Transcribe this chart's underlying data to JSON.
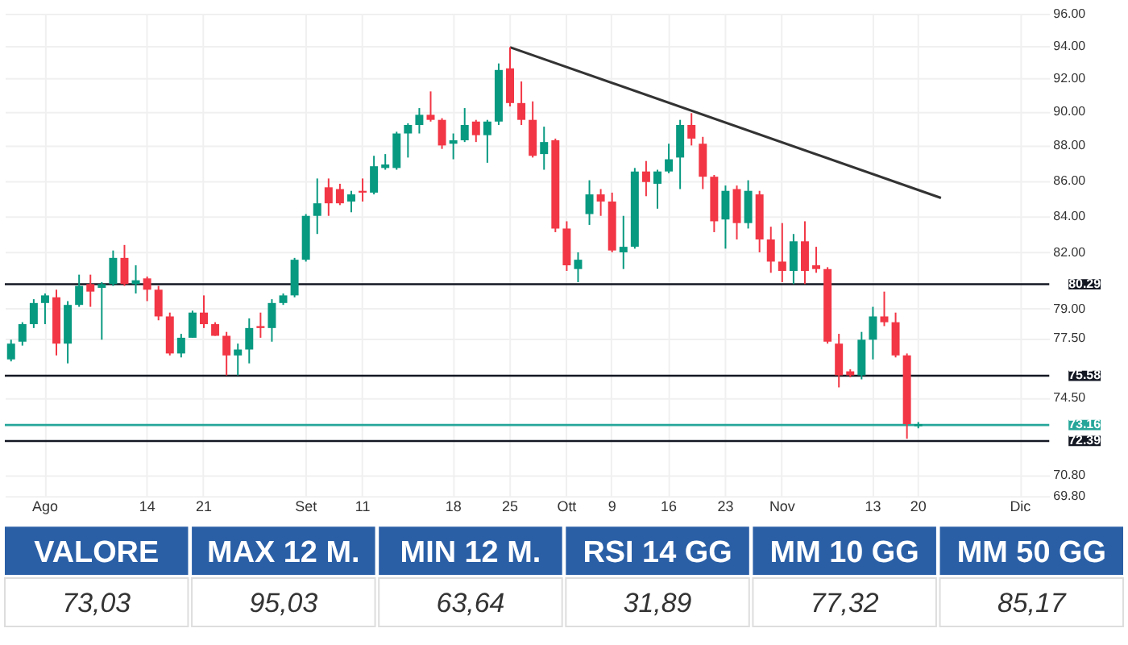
{
  "chart_data": [
    {
      "type": "candlestick",
      "categories": [
        null,
        null,
        null,
        "Ago",
        null,
        null,
        null,
        null,
        null,
        null,
        null,
        null,
        "14",
        null,
        null,
        null,
        null,
        "21",
        null,
        null,
        null,
        null,
        null,
        null,
        null,
        null,
        "Set",
        null,
        null,
        null,
        null,
        "11",
        null,
        null,
        null,
        null,
        null,
        null,
        null,
        "18",
        null,
        null,
        null,
        null,
        "25",
        null,
        null,
        null,
        null,
        "Ott",
        null,
        null,
        null,
        "9",
        null,
        null,
        null,
        null,
        "16",
        null,
        null,
        null,
        null,
        "23",
        null,
        null,
        null,
        null,
        "Nov",
        null,
        null,
        null,
        null,
        null,
        null,
        null,
        "13",
        null,
        null,
        null,
        "20",
        null,
        null,
        null,
        null,
        null,
        null,
        null,
        null,
        "Dic",
        null,
        null
      ],
      "ohlc": [
        [
          76.4,
          77.4,
          76.3,
          77.2
        ],
        [
          77.3,
          78.3,
          77.1,
          78.2
        ],
        [
          78.2,
          79.5,
          78.0,
          79.3
        ],
        [
          79.3,
          79.8,
          78.2,
          79.7
        ],
        [
          79.6,
          80.0,
          76.6,
          77.2
        ],
        [
          77.2,
          79.4,
          76.2,
          79.2
        ],
        [
          79.2,
          80.8,
          79.1,
          80.2
        ],
        [
          80.3,
          80.8,
          79.1,
          79.9
        ],
        [
          80.1,
          80.4,
          77.4,
          80.3
        ],
        [
          80.3,
          82.1,
          80.2,
          81.7
        ],
        [
          81.7,
          82.4,
          80.2,
          80.3
        ],
        [
          80.3,
          81.3,
          79.8,
          80.5
        ],
        [
          80.6,
          80.7,
          79.4,
          80.0
        ],
        [
          80.0,
          80.2,
          78.4,
          78.6
        ],
        [
          78.6,
          78.8,
          76.6,
          76.7
        ],
        [
          76.7,
          77.7,
          76.5,
          77.5
        ],
        [
          77.5,
          78.9,
          77.5,
          78.8
        ],
        [
          78.8,
          79.7,
          78.0,
          78.2
        ],
        [
          78.2,
          78.3,
          77.6,
          77.6
        ],
        [
          77.6,
          77.8,
          75.6,
          76.6
        ],
        [
          76.6,
          77.2,
          75.6,
          76.9
        ],
        [
          76.9,
          78.5,
          76.2,
          78.0
        ],
        [
          78.1,
          78.8,
          77.5,
          78.0
        ],
        [
          78.0,
          79.5,
          77.3,
          79.3
        ],
        [
          79.3,
          79.8,
          79.2,
          79.7
        ],
        [
          79.7,
          81.7,
          79.6,
          81.6
        ],
        [
          81.6,
          84.1,
          81.5,
          84.0
        ],
        [
          84.0,
          86.1,
          83.0,
          84.7
        ],
        [
          85.6,
          86.1,
          84.0,
          84.7
        ],
        [
          85.5,
          85.8,
          84.6,
          84.7
        ],
        [
          84.8,
          85.4,
          84.2,
          85.2
        ],
        [
          85.4,
          86.1,
          84.8,
          85.3
        ],
        [
          85.3,
          87.4,
          85.2,
          86.8
        ],
        [
          86.7,
          87.5,
          86.6,
          86.9
        ],
        [
          86.7,
          88.8,
          86.6,
          88.7
        ],
        [
          88.7,
          89.3,
          87.3,
          89.2
        ],
        [
          89.2,
          90.2,
          88.7,
          89.8
        ],
        [
          89.8,
          91.2,
          89.4,
          89.5
        ],
        [
          89.5,
          89.6,
          87.8,
          88.0
        ],
        [
          88.1,
          88.7,
          87.2,
          88.3
        ],
        [
          88.3,
          90.2,
          88.2,
          89.2
        ],
        [
          89.4,
          89.5,
          88.2,
          88.6
        ],
        [
          88.6,
          89.5,
          87.0,
          89.4
        ],
        [
          89.4,
          92.9,
          89.2,
          92.5
        ],
        [
          92.6,
          93.9,
          90.3,
          90.5
        ],
        [
          90.5,
          91.8,
          89.2,
          89.5
        ],
        [
          89.5,
          90.6,
          87.3,
          87.4
        ],
        [
          87.5,
          89.1,
          86.6,
          88.2
        ],
        [
          88.3,
          88.4,
          83.1,
          83.3
        ],
        [
          83.3,
          83.7,
          81.0,
          81.3
        ],
        [
          81.1,
          82.0,
          80.4,
          81.6
        ],
        [
          84.1,
          86.0,
          83.5,
          85.2
        ],
        [
          85.2,
          85.5,
          84.0,
          84.8
        ],
        [
          84.8,
          85.3,
          82.0,
          82.1
        ],
        [
          82.0,
          84.0,
          81.1,
          82.3
        ],
        [
          82.3,
          86.7,
          82.2,
          86.5
        ],
        [
          86.5,
          87.1,
          85.1,
          85.9
        ],
        [
          85.8,
          86.6,
          84.4,
          86.5
        ],
        [
          86.5,
          88.1,
          86.4,
          87.2
        ],
        [
          87.3,
          89.5,
          85.5,
          89.2
        ],
        [
          89.2,
          89.9,
          88.0,
          88.4
        ],
        [
          88.1,
          88.5,
          85.5,
          86.2
        ],
        [
          86.2,
          86.3,
          83.1,
          83.7
        ],
        [
          83.8,
          85.7,
          82.2,
          85.4
        ],
        [
          85.5,
          85.7,
          82.7,
          83.6
        ],
        [
          83.6,
          86.0,
          83.3,
          85.4
        ],
        [
          85.2,
          85.4,
          82.0,
          82.7
        ],
        [
          82.7,
          83.4,
          80.9,
          81.5
        ],
        [
          81.5,
          83.6,
          80.4,
          81.0
        ],
        [
          81.0,
          83.0,
          80.3,
          82.6
        ],
        [
          82.6,
          83.7,
          80.3,
          81.0
        ],
        [
          81.3,
          82.3,
          80.9,
          81.1
        ],
        [
          81.1,
          81.2,
          77.2,
          77.3
        ],
        [
          77.2,
          77.7,
          75.0,
          75.6
        ],
        [
          75.8,
          75.9,
          75.5,
          75.6
        ],
        [
          75.6,
          77.8,
          75.4,
          77.4
        ],
        [
          77.4,
          79.1,
          76.4,
          78.6
        ],
        [
          78.6,
          79.9,
          78.1,
          78.3
        ],
        [
          78.3,
          78.8,
          76.5,
          76.6
        ],
        [
          76.6,
          76.7,
          72.5,
          73.2
        ],
        [
          73.1,
          73.3,
          73.0,
          73.2
        ],
        null,
        null,
        null,
        null,
        null,
        null,
        null,
        null,
        null,
        null,
        null
      ],
      "colors": [
        "#089981",
        "#089981",
        "#089981",
        "#089981",
        "#f23645",
        "#089981",
        "#089981",
        "#f23645",
        "#089981",
        "#089981",
        "#f23645",
        "#089981",
        "#f23645",
        "#f23645",
        "#f23645",
        "#089981",
        "#089981",
        "#f23645",
        "#f23645",
        "#f23645",
        "#089981",
        "#089981",
        "#f23645",
        "#089981",
        "#089981",
        "#089981",
        "#089981",
        "#089981",
        "#f23645",
        "#f23645",
        "#089981",
        "#f23645",
        "#089981",
        "#089981",
        "#089981",
        "#089981",
        "#089981",
        "#f23645",
        "#f23645",
        "#089981",
        "#089981",
        "#f23645",
        "#089981",
        "#089981",
        "#f23645",
        "#f23645",
        "#f23645",
        "#089981",
        "#f23645",
        "#f23645",
        "#089981",
        "#089981",
        "#f23645",
        "#f23645",
        "#089981",
        "#089981",
        "#f23645",
        "#089981",
        "#089981",
        "#089981",
        "#f23645",
        "#f23645",
        "#f23645",
        "#089981",
        "#f23645",
        "#089981",
        "#f23645",
        "#f23645",
        "#f23645",
        "#089981",
        "#f23645",
        "#f23645",
        "#f23645",
        "#f23645",
        "#f23645",
        "#089981",
        "#089981",
        "#f23645",
        "#f23645",
        "#f23645",
        "#089981",
        null,
        null,
        null,
        null,
        null,
        null,
        null,
        null,
        null,
        null,
        null
      ],
      "series": [
        {
          "type": "line",
          "color": "#333333",
          "values": [
            null,
            null,
            null,
            null,
            null,
            null,
            null,
            null,
            null,
            null,
            null,
            null,
            null,
            null,
            null,
            null,
            null,
            null,
            null,
            null,
            null,
            null,
            null,
            null,
            null,
            null,
            null,
            null,
            null,
            null,
            null,
            null,
            null,
            null,
            null,
            null,
            null,
            null,
            null,
            null,
            null,
            null,
            null,
            null,
            93.9,
            null,
            null,
            null,
            null,
            null,
            null,
            null,
            null,
            null,
            null,
            null,
            null,
            null,
            null,
            null,
            null,
            null,
            null,
            null,
            null,
            null,
            null,
            null,
            null,
            null,
            null,
            null,
            null,
            null,
            null,
            null,
            null,
            null,
            null,
            null,
            null,
            null,
            85.0,
            null,
            null,
            null,
            null,
            null,
            null,
            null,
            null,
            null
          ]
        }
      ],
      "log": true,
      "ylim": [
        69.8,
        96
      ],
      "yticks": [
        {
          "value": 96,
          "label": "96.00"
        },
        {
          "value": 94,
          "label": "94.00"
        },
        {
          "value": 92,
          "label": "92.00"
        },
        {
          "value": 90,
          "label": "90.00"
        },
        {
          "value": 88,
          "label": "88.00"
        },
        {
          "value": 86,
          "label": "86.00"
        },
        {
          "value": 84,
          "label": "84.00"
        },
        {
          "value": 82,
          "label": "82.00"
        },
        {
          "value": 79,
          "label": "79.00"
        },
        {
          "value": 77.5,
          "label": "77.50"
        },
        {
          "value": 74.5,
          "label": "74.50"
        },
        {
          "value": 70.8,
          "label": "70.80"
        },
        {
          "value": 69.8,
          "label": "69.80"
        }
      ],
      "ref_lines": [
        {
          "axis": "y",
          "value": 80.29,
          "label": "80.29",
          "color": "#131722"
        },
        {
          "axis": "y",
          "value": 75.58,
          "label": "75.58",
          "color": "#131722"
        },
        {
          "axis": "y",
          "value": 72.39,
          "label": "72.39",
          "color": "#131722"
        },
        {
          "axis": "y",
          "value": 73.16,
          "label": "73.16",
          "color": "#26a69a"
        }
      ],
      "grid": true
    },
    {
      "type": "other",
      "categories": [
        "VALORE",
        "MAX 12 M.",
        "MIN 12 M.",
        "RSI 14 GG",
        "MM 10 GG",
        "MM 50 GG"
      ],
      "value_labels": [
        "73,03",
        "95,03",
        "63,64",
        "31,89",
        "77,32",
        "85,17"
      ],
      "color": "#2a5fa6"
    }
  ]
}
